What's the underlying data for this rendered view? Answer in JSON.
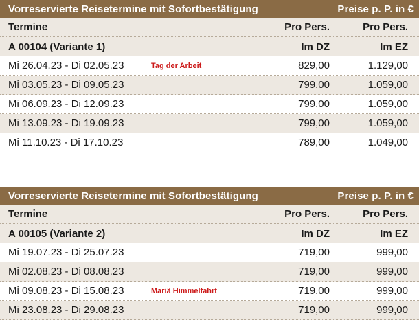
{
  "tables": [
    {
      "title": "Vorreservierte Reisetermine mit Sofortbestätigung",
      "price_note": "Preise p. P. in €",
      "header": {
        "termine": "Termine",
        "col_dz_top": "Pro Pers.",
        "col_ez_top": "Pro Pers.",
        "variant": "A 00104 (Variante 1)",
        "col_dz_sub": "Im DZ",
        "col_ez_sub": "Im EZ"
      },
      "rows": [
        {
          "dates": "Mi 26.04.23 - Di 02.05.23",
          "note": "Tag der Arbeit",
          "dz": "829,00",
          "ez": "1.129,00"
        },
        {
          "dates": "Mi 03.05.23 - Di 09.05.23",
          "note": "",
          "dz": "799,00",
          "ez": "1.059,00"
        },
        {
          "dates": "Mi 06.09.23 - Di 12.09.23",
          "note": "",
          "dz": "799,00",
          "ez": "1.059,00"
        },
        {
          "dates": "Mi 13.09.23 - Di 19.09.23",
          "note": "",
          "dz": "799,00",
          "ez": "1.059,00"
        },
        {
          "dates": "Mi 11.10.23 - Di 17.10.23",
          "note": "",
          "dz": "789,00",
          "ez": "1.049,00"
        }
      ]
    },
    {
      "title": "Vorreservierte Reisetermine mit Sofortbestätigung",
      "price_note": "Preise p. P. in €",
      "header": {
        "termine": "Termine",
        "col_dz_top": "Pro Pers.",
        "col_ez_top": "Pro Pers.",
        "variant": "A 00105 (Variante 2)",
        "col_dz_sub": "Im DZ",
        "col_ez_sub": "Im EZ"
      },
      "rows": [
        {
          "dates": "Mi 19.07.23 - Di 25.07.23",
          "note": "",
          "dz": "719,00",
          "ez": "999,00"
        },
        {
          "dates": "Mi 02.08.23 - Di 08.08.23",
          "note": "",
          "dz": "719,00",
          "ez": "999,00"
        },
        {
          "dates": "Mi 09.08.23 - Di 15.08.23",
          "note": "Mariä Himmelfahrt",
          "dz": "719,00",
          "ez": "999,00"
        },
        {
          "dates": "Mi 23.08.23 - Di 29.08.23",
          "note": "",
          "dz": "719,00",
          "ez": "999,00"
        }
      ]
    }
  ]
}
